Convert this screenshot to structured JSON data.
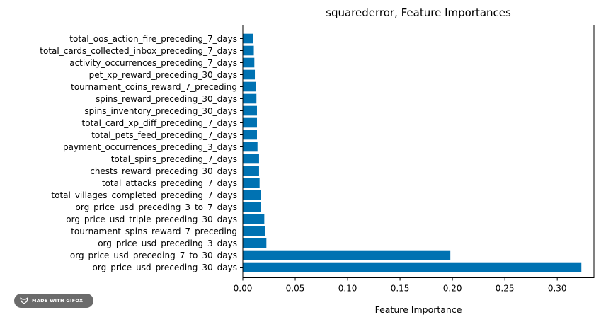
{
  "chart_data": {
    "type": "bar",
    "orientation": "horizontal",
    "title": "squarederror, Feature Importances",
    "xlabel": "Feature Importance",
    "ylabel": "",
    "xlim": [
      0,
      0.335
    ],
    "xticks": [
      "0.00",
      "0.05",
      "0.10",
      "0.15",
      "0.20",
      "0.25",
      "0.30"
    ],
    "bar_color": "#0072b2",
    "categories": [
      "total_oos_action_fire_preceding_7_days",
      "total_cards_collected_inbox_preceding_7_days",
      "activity_occurrences_preceding_7_days",
      "pet_xp_reward_preceding_30_days",
      "tournament_coins_reward_7_preceding",
      "spins_reward_preceding_30_days",
      "spins_inventory_preceding_30_days",
      "total_card_xp_diff_preceding_7_days",
      "total_pets_feed_preceding_7_days",
      "payment_occurrences_preceding_3_days",
      "total_spins_preceding_7_days",
      "chests_reward_preceding_30_days",
      "total_attacks_preceding_7_days",
      "total_villages_completed_preceding_7_days",
      "org_price_usd_preceding_3_to_7_days",
      "org_price_usd_triple_preceding_30_days",
      "tournament_spins_reward_7_preceding",
      "org_price_usd_preceding_3_days",
      "org_price_usd_preceding_7_to_30_days",
      "org_price_usd_preceding_30_days"
    ],
    "values": [
      0.01,
      0.0105,
      0.011,
      0.0115,
      0.0125,
      0.013,
      0.0135,
      0.0135,
      0.0135,
      0.014,
      0.0155,
      0.0155,
      0.016,
      0.017,
      0.0175,
      0.0205,
      0.0215,
      0.0225,
      0.198,
      0.323
    ]
  },
  "badge": {
    "label": "MADE WITH GIFOX",
    "icon": "fox-icon"
  }
}
